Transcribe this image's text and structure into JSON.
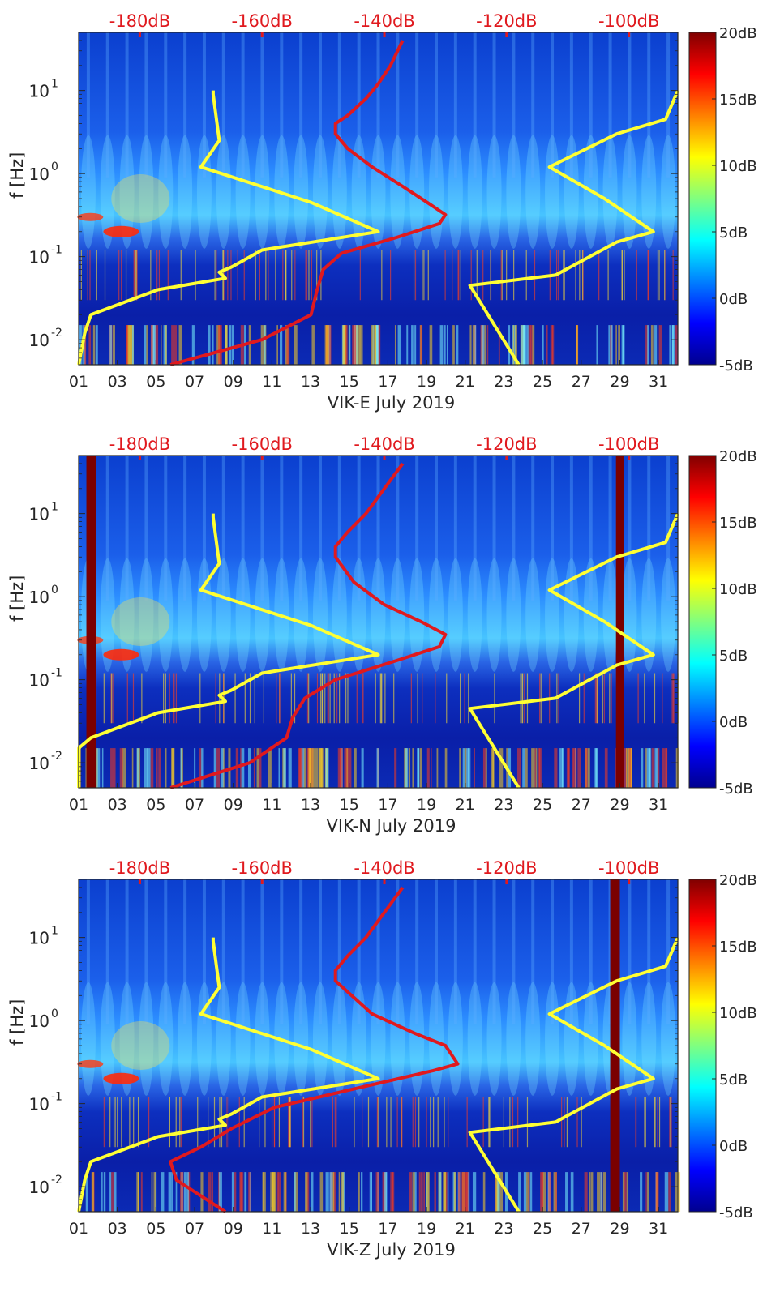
{
  "figure": {
    "colors": {
      "axis": "#262626",
      "red_curve": "#e0191e",
      "yellow_curve": "#ffff33",
      "top_labels": "#e0191e"
    }
  },
  "chart_data": [
    {
      "type": "heatmap",
      "id": "vik-e",
      "xlabel": "VIK-E July 2019",
      "ylabel": "f [Hz]",
      "xlim": [
        1,
        32
      ],
      "ylim": [
        0.005,
        50
      ],
      "yscale": "log",
      "x_ticks": [
        "01",
        "03",
        "05",
        "07",
        "09",
        "11",
        "13",
        "15",
        "17",
        "19",
        "21",
        "23",
        "25",
        "27",
        "29",
        "31"
      ],
      "y_ticks": [
        "10^-2",
        "10^-1",
        "10^0",
        "10^1"
      ],
      "top_axis_ticks": [
        "-180dB",
        "-160dB",
        "-140dB",
        "-120dB",
        "-100dB"
      ],
      "top_axis_range_dB": [
        -190,
        -92
      ],
      "colorbar": {
        "range": [
          -5,
          20
        ],
        "ticks": [
          "20dB",
          "15dB",
          "10dB",
          "5dB",
          "0dB",
          "-5dB"
        ],
        "colormap": "jet"
      },
      "dark_bands_days": [],
      "series": [
        {
          "kind": "red",
          "points": [
            [
              -175,
              0.005
            ],
            [
              -160,
              0.01
            ],
            [
              -152,
              0.02
            ],
            [
              -151,
              0.04
            ],
            [
              -150,
              0.07
            ],
            [
              -147,
              0.11
            ],
            [
              -138,
              0.17
            ],
            [
              -131,
              0.25
            ],
            [
              -130,
              0.32
            ],
            [
              -133,
              0.45
            ],
            [
              -137,
              0.7
            ],
            [
              -142,
              1.2
            ],
            [
              -146,
              2
            ],
            [
              -148,
              3
            ],
            [
              -148,
              4
            ],
            [
              -146,
              5
            ],
            [
              -143,
              8
            ],
            [
              -141,
              12
            ],
            [
              -139,
              20
            ],
            [
              -137,
              40
            ]
          ]
        },
        {
          "kind": "yellow",
          "points": [
            [
              -190,
              0.005
            ],
            [
              -189,
              0.012
            ],
            [
              -188,
              0.02
            ],
            [
              -177,
              0.04
            ],
            [
              -166,
              0.055
            ],
            [
              -167,
              0.065
            ],
            [
              -165,
              0.075
            ],
            [
              -160,
              0.12
            ],
            [
              -141,
              0.2
            ],
            [
              -152,
              0.45
            ],
            [
              -170,
              1.2
            ],
            [
              -167,
              2.5
            ],
            [
              -168,
              9
            ],
            [
              -168,
              10
            ]
          ]
        },
        {
          "kind": "yellow",
          "points": [
            [
              -118,
              0.005
            ],
            [
              -126,
              0.045
            ],
            [
              -112,
              0.06
            ],
            [
              -102,
              0.15
            ],
            [
              -96,
              0.2
            ],
            [
              -104,
              0.5
            ],
            [
              -113,
              1.2
            ],
            [
              -102,
              3
            ],
            [
              -94,
              4.5
            ],
            [
              -92,
              10
            ]
          ]
        }
      ]
    },
    {
      "type": "heatmap",
      "id": "vik-n",
      "xlabel": "VIK-N July 2019",
      "ylabel": "f [Hz]",
      "xlim": [
        1,
        32
      ],
      "ylim": [
        0.005,
        50
      ],
      "yscale": "log",
      "x_ticks": [
        "01",
        "03",
        "05",
        "07",
        "09",
        "11",
        "13",
        "15",
        "17",
        "19",
        "21",
        "23",
        "25",
        "27",
        "29",
        "31"
      ],
      "y_ticks": [
        "10^-2",
        "10^-1",
        "10^0",
        "10^1"
      ],
      "top_axis_ticks": [
        "-180dB",
        "-160dB",
        "-140dB",
        "-120dB",
        "-100dB"
      ],
      "top_axis_range_dB": [
        -190,
        -92
      ],
      "colorbar": {
        "range": [
          -5,
          20
        ],
        "ticks": [
          "20dB",
          "15dB",
          "10dB",
          "5dB",
          "0dB",
          "-5dB"
        ],
        "colormap": "jet"
      },
      "dark_bands_days": [
        [
          1.4,
          1.9
        ],
        [
          28.8,
          29.2
        ]
      ],
      "series": [
        {
          "kind": "red",
          "points": [
            [
              -175,
              0.005
            ],
            [
              -162,
              0.01
            ],
            [
              -156,
              0.02
            ],
            [
              -155,
              0.035
            ],
            [
              -153,
              0.06
            ],
            [
              -148,
              0.1
            ],
            [
              -138,
              0.17
            ],
            [
              -131,
              0.25
            ],
            [
              -130,
              0.35
            ],
            [
              -134,
              0.5
            ],
            [
              -140,
              0.8
            ],
            [
              -145,
              1.5
            ],
            [
              -148,
              3
            ],
            [
              -148,
              4
            ],
            [
              -146,
              6
            ],
            [
              -143,
              10
            ],
            [
              -140,
              20
            ],
            [
              -137,
              40
            ]
          ]
        },
        {
          "kind": "yellow",
          "points": [
            [
              -190,
              0.005
            ],
            [
              -190,
              0.015
            ],
            [
              -188,
              0.02
            ],
            [
              -177,
              0.04
            ],
            [
              -166,
              0.055
            ],
            [
              -167,
              0.065
            ],
            [
              -165,
              0.075
            ],
            [
              -160,
              0.12
            ],
            [
              -141,
              0.2
            ],
            [
              -152,
              0.45
            ],
            [
              -170,
              1.2
            ],
            [
              -167,
              2.5
            ],
            [
              -168,
              9
            ],
            [
              -168,
              10
            ]
          ]
        },
        {
          "kind": "yellow",
          "points": [
            [
              -118,
              0.005
            ],
            [
              -126,
              0.045
            ],
            [
              -112,
              0.06
            ],
            [
              -102,
              0.15
            ],
            [
              -96,
              0.2
            ],
            [
              -104,
              0.5
            ],
            [
              -113,
              1.2
            ],
            [
              -102,
              3
            ],
            [
              -94,
              4.5
            ],
            [
              -92,
              10
            ]
          ]
        }
      ]
    },
    {
      "type": "heatmap",
      "id": "vik-z",
      "xlabel": "VIK-Z July 2019",
      "ylabel": "f [Hz]",
      "xlim": [
        1,
        32
      ],
      "ylim": [
        0.005,
        50
      ],
      "yscale": "log",
      "x_ticks": [
        "01",
        "03",
        "05",
        "07",
        "09",
        "11",
        "13",
        "15",
        "17",
        "19",
        "21",
        "23",
        "25",
        "27",
        "29",
        "31"
      ],
      "y_ticks": [
        "10^-2",
        "10^-1",
        "10^0",
        "10^1"
      ],
      "top_axis_ticks": [
        "-180dB",
        "-160dB",
        "-140dB",
        "-120dB",
        "-100dB"
      ],
      "top_axis_range_dB": [
        -190,
        -92
      ],
      "colorbar": {
        "range": [
          -5,
          20
        ],
        "ticks": [
          "20dB",
          "15dB",
          "10dB",
          "5dB",
          "0dB",
          "-5dB"
        ],
        "colormap": "jet"
      },
      "dark_bands_days": [
        [
          28.5,
          29.0
        ]
      ],
      "series": [
        {
          "kind": "red",
          "points": [
            [
              -166,
              0.005
            ],
            [
              -174,
              0.012
            ],
            [
              -175,
              0.02
            ],
            [
              -170,
              0.03
            ],
            [
              -165,
              0.05
            ],
            [
              -158,
              0.09
            ],
            [
              -145,
              0.15
            ],
            [
              -132,
              0.25
            ],
            [
              -128,
              0.3
            ],
            [
              -130,
              0.5
            ],
            [
              -135,
              0.7
            ],
            [
              -142,
              1.2
            ],
            [
              -148,
              3
            ],
            [
              -148,
              4
            ],
            [
              -146,
              6
            ],
            [
              -143,
              10
            ],
            [
              -140,
              20
            ],
            [
              -137,
              40
            ]
          ]
        },
        {
          "kind": "yellow",
          "points": [
            [
              -190,
              0.005
            ],
            [
              -189,
              0.012
            ],
            [
              -188,
              0.02
            ],
            [
              -177,
              0.04
            ],
            [
              -166,
              0.055
            ],
            [
              -167,
              0.065
            ],
            [
              -165,
              0.075
            ],
            [
              -160,
              0.12
            ],
            [
              -141,
              0.2
            ],
            [
              -152,
              0.45
            ],
            [
              -170,
              1.2
            ],
            [
              -167,
              2.5
            ],
            [
              -168,
              9
            ],
            [
              -168,
              10
            ]
          ]
        },
        {
          "kind": "yellow",
          "points": [
            [
              -118,
              0.005
            ],
            [
              -126,
              0.045
            ],
            [
              -112,
              0.06
            ],
            [
              -102,
              0.15
            ],
            [
              -96,
              0.2
            ],
            [
              -104,
              0.5
            ],
            [
              -113,
              1.2
            ],
            [
              -102,
              3
            ],
            [
              -94,
              4.5
            ],
            [
              -92,
              10
            ]
          ]
        }
      ]
    }
  ]
}
